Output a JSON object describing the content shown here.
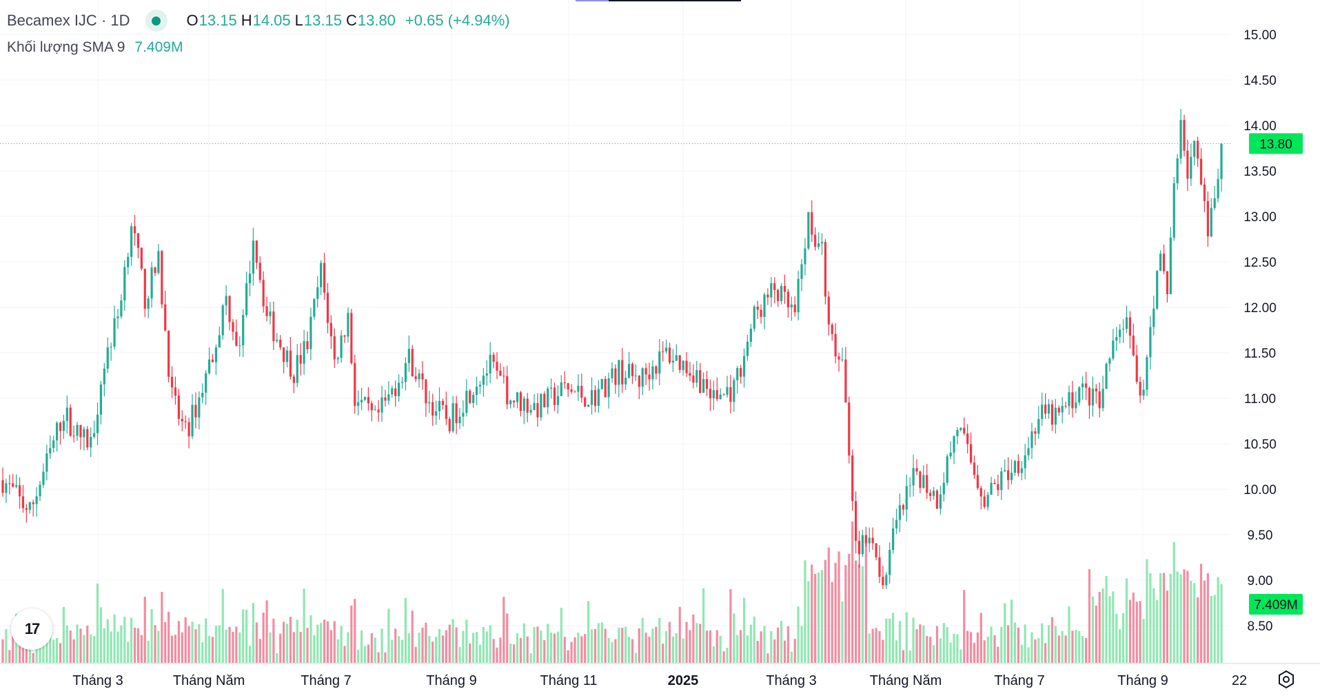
{
  "legend": {
    "symbol": "Becamex IJC",
    "interval": "1D",
    "open_key": "O",
    "open": "13.15",
    "high_key": "H",
    "high": "14.05",
    "low_key": "L",
    "low": "13.15",
    "close_key": "C",
    "close": "13.80",
    "change": "+0.65 (+4.94%)",
    "volume_label": "Khối lượng SMA 9",
    "volume_value": "7.409M"
  },
  "colors": {
    "up": "#22ab94",
    "down": "#f23645",
    "up_volume": "#8fe7b2",
    "down_volume": "#f28ca0",
    "price_tag": "#00e65a"
  },
  "logo_text": "17",
  "chart_data": {
    "type": "candlestick",
    "title": "Becamex IJC · 1D",
    "y_ticks": [
      "15.00",
      "14.50",
      "14.00",
      "13.50",
      "13.00",
      "12.50",
      "12.00",
      "11.50",
      "11.00",
      "10.50",
      "10.00",
      "9.50",
      "9.00",
      "8.50"
    ],
    "ylim": [
      8.25,
      15.2
    ],
    "x_labels": [
      {
        "label": "Tháng 3",
        "bold": false
      },
      {
        "label": "Tháng Năm",
        "bold": false
      },
      {
        "label": "Tháng 7",
        "bold": false
      },
      {
        "label": "Tháng 9",
        "bold": false
      },
      {
        "label": "Tháng 11",
        "bold": false
      },
      {
        "label": "2025",
        "bold": true
      },
      {
        "label": "Tháng 3",
        "bold": false
      },
      {
        "label": "Tháng Năm",
        "bold": false
      },
      {
        "label": "Tháng 7",
        "bold": false
      },
      {
        "label": "Tháng 9",
        "bold": false
      },
      {
        "label": "22",
        "bold": false
      }
    ],
    "last_price_label": "13.80",
    "last_price": 13.8,
    "volume_sma_label": "7.409M",
    "price_path": [
      [
        0,
        10.1
      ],
      [
        8,
        9.75
      ],
      [
        14,
        10.4
      ],
      [
        18,
        10.85
      ],
      [
        22,
        10.6
      ],
      [
        26,
        10.5
      ],
      [
        30,
        11.4
      ],
      [
        34,
        11.9
      ],
      [
        38,
        12.95
      ],
      [
        42,
        12.1
      ],
      [
        46,
        12.5
      ],
      [
        50,
        11.0
      ],
      [
        54,
        10.6
      ],
      [
        58,
        11.0
      ],
      [
        62,
        11.5
      ],
      [
        66,
        12.1
      ],
      [
        70,
        11.5
      ],
      [
        74,
        12.8
      ],
      [
        78,
        11.9
      ],
      [
        82,
        11.6
      ],
      [
        86,
        11.3
      ],
      [
        90,
        11.6
      ],
      [
        94,
        12.4
      ],
      [
        98,
        11.4
      ],
      [
        102,
        11.9
      ],
      [
        104,
        11.0
      ],
      [
        110,
        10.75
      ],
      [
        114,
        11.0
      ],
      [
        120,
        11.45
      ],
      [
        126,
        10.95
      ],
      [
        132,
        10.75
      ],
      [
        140,
        11.2
      ],
      [
        144,
        11.35
      ],
      [
        150,
        11.0
      ],
      [
        158,
        10.9
      ],
      [
        166,
        11.1
      ],
      [
        174,
        11.0
      ],
      [
        182,
        11.3
      ],
      [
        188,
        11.2
      ],
      [
        196,
        11.5
      ],
      [
        204,
        11.3
      ],
      [
        210,
        11.0
      ],
      [
        216,
        11.1
      ],
      [
        222,
        11.9
      ],
      [
        228,
        12.2
      ],
      [
        234,
        11.9
      ],
      [
        238,
        13.0
      ],
      [
        242,
        12.6
      ],
      [
        244,
        11.7
      ],
      [
        248,
        11.3
      ],
      [
        250,
        10.5
      ],
      [
        252,
        9.35
      ],
      [
        256,
        9.6
      ],
      [
        260,
        9.0
      ],
      [
        264,
        9.6
      ],
      [
        270,
        10.2
      ],
      [
        276,
        9.9
      ],
      [
        282,
        10.7
      ],
      [
        286,
        10.3
      ],
      [
        290,
        9.9
      ],
      [
        296,
        10.15
      ],
      [
        302,
        10.4
      ],
      [
        306,
        10.8
      ],
      [
        312,
        10.8
      ],
      [
        318,
        11.1
      ],
      [
        324,
        10.95
      ],
      [
        328,
        11.6
      ],
      [
        332,
        11.85
      ],
      [
        336,
        10.9
      ],
      [
        340,
        12.1
      ],
      [
        342,
        12.5
      ],
      [
        344,
        12.15
      ],
      [
        346,
        13.4
      ],
      [
        348,
        14.0
      ],
      [
        350,
        13.5
      ],
      [
        352,
        13.8
      ],
      [
        354,
        13.3
      ],
      [
        356,
        12.8
      ],
      [
        358,
        13.15
      ],
      [
        360,
        13.8
      ]
    ]
  }
}
